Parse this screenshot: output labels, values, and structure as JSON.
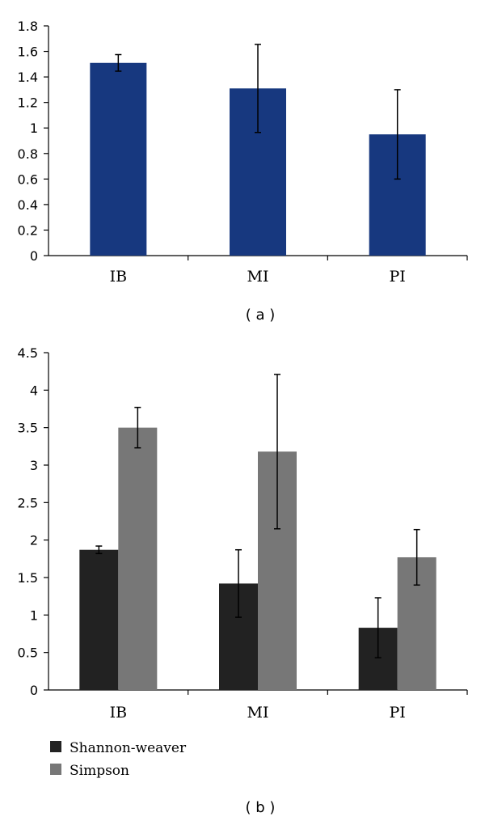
{
  "chart_data": [
    {
      "type": "bar",
      "panel_label": "( a )",
      "categories": [
        "IB",
        "MI",
        "PI"
      ],
      "series": [
        {
          "name": "",
          "color": "#17387f",
          "values": [
            1.51,
            1.31,
            0.95
          ],
          "errors": [
            0.065,
            0.345,
            0.35
          ]
        }
      ],
      "ylim": [
        0,
        1.8
      ],
      "yticks": [
        0,
        0.2,
        0.4,
        0.6,
        0.8,
        1,
        1.2,
        1.4,
        1.6,
        1.8
      ],
      "ytick_labels": [
        "0",
        "0.2",
        "0.4",
        "0.6",
        "0.8",
        "1",
        "1.2",
        "1.4",
        "1.6",
        "1.8"
      ],
      "title": "",
      "xlabel": "",
      "ylabel": ""
    },
    {
      "type": "bar",
      "panel_label": "( b )",
      "categories": [
        "IB",
        "MI",
        "PI"
      ],
      "series": [
        {
          "name": "Shannon-weaver",
          "color": "#222222",
          "values": [
            1.87,
            1.42,
            0.83
          ],
          "errors": [
            0.05,
            0.45,
            0.4
          ]
        },
        {
          "name": "Simpson",
          "color": "#777777",
          "values": [
            3.5,
            3.18,
            1.77
          ],
          "errors": [
            0.27,
            1.03,
            0.37
          ]
        }
      ],
      "ylim": [
        0,
        4.5
      ],
      "yticks": [
        0,
        0.5,
        1,
        1.5,
        2,
        2.5,
        3,
        3.5,
        4,
        4.5
      ],
      "ytick_labels": [
        "0",
        "0.5",
        "1",
        "1.5",
        "2",
        "2.5",
        "3",
        "3.5",
        "4",
        "4.5"
      ],
      "legend": "bottom-left",
      "title": "",
      "xlabel": "",
      "ylabel": ""
    }
  ]
}
